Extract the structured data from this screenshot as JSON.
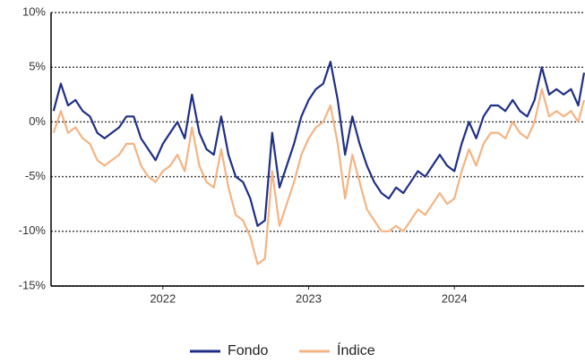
{
  "chart_data": {
    "type": "line",
    "x": [
      2021.25,
      2021.3,
      2021.35,
      2021.4,
      2021.45,
      2021.5,
      2021.55,
      2021.6,
      2021.65,
      2021.7,
      2021.75,
      2021.8,
      2021.85,
      2021.9,
      2021.95,
      2022.0,
      2022.05,
      2022.1,
      2022.15,
      2022.2,
      2022.25,
      2022.3,
      2022.35,
      2022.4,
      2022.45,
      2022.5,
      2022.55,
      2022.6,
      2022.65,
      2022.7,
      2022.75,
      2022.8,
      2022.85,
      2022.9,
      2022.95,
      2023.0,
      2023.05,
      2023.1,
      2023.15,
      2023.2,
      2023.25,
      2023.3,
      2023.35,
      2023.4,
      2023.45,
      2023.5,
      2023.55,
      2023.6,
      2023.65,
      2023.7,
      2023.75,
      2023.8,
      2023.85,
      2023.9,
      2023.95,
      2024.0,
      2024.05,
      2024.1,
      2024.15,
      2024.2,
      2024.25,
      2024.3,
      2024.35,
      2024.4,
      2024.45,
      2024.5,
      2024.55,
      2024.6,
      2024.65,
      2024.7,
      2024.75,
      2024.8,
      2024.85,
      2024.89
    ],
    "series": [
      {
        "name": "Fondo",
        "color": "#1f2f86",
        "values": [
          1,
          3.5,
          1.5,
          2,
          1,
          0.5,
          -1,
          -1.5,
          -1,
          -0.5,
          0.5,
          0.5,
          -1.5,
          -2.5,
          -3.5,
          -2,
          -1,
          0,
          -1.5,
          2.5,
          -1,
          -2.5,
          -3,
          0.5,
          -3,
          -5,
          -5.5,
          -7,
          -9.5,
          -9,
          -1,
          -6,
          -4,
          -2,
          0.5,
          2,
          3,
          3.5,
          5.5,
          2,
          -3,
          0.5,
          -2,
          -4,
          -5.5,
          -6.5,
          -7,
          -6,
          -6.5,
          -5.5,
          -4.5,
          -5,
          -4,
          -3,
          -4,
          -4.5,
          -2,
          0,
          -1.5,
          0.5,
          1.5,
          1.5,
          1,
          2,
          1,
          0.5,
          2,
          5,
          2.5,
          3,
          2.5,
          3,
          1.5,
          4.5
        ]
      },
      {
        "name": "Índice",
        "color": "#f4b483",
        "values": [
          -1,
          1,
          -1,
          -0.5,
          -1.5,
          -2,
          -3.5,
          -4,
          -3.5,
          -3,
          -2,
          -2,
          -4,
          -5,
          -5.5,
          -4.5,
          -4,
          -3,
          -4.5,
          -0.5,
          -4,
          -5.5,
          -6,
          -2.5,
          -6,
          -8.5,
          -9,
          -10.5,
          -13,
          -12.5,
          -4.5,
          -9.5,
          -7.5,
          -5.5,
          -3,
          -1.5,
          -0.5,
          0,
          1.5,
          -2,
          -7,
          -3,
          -5.5,
          -8,
          -9,
          -10,
          -10,
          -9.5,
          -10,
          -9,
          -8,
          -8.5,
          -7.5,
          -6.5,
          -7.5,
          -7,
          -4.5,
          -2.5,
          -4,
          -2,
          -1,
          -1,
          -1.5,
          0,
          -1,
          -1.5,
          0,
          3,
          0.5,
          1,
          0.5,
          1,
          0,
          2
        ]
      }
    ],
    "xlim": [
      2021.233,
      2024.89
    ],
    "xticks": [
      2022,
      2023,
      2024
    ],
    "ylim": [
      -15,
      10
    ],
    "yticks": [
      {
        "value": -15,
        "label": "-15%"
      },
      {
        "value": -10,
        "label": "-10%"
      },
      {
        "value": -5,
        "label": "-5%"
      },
      {
        "value": 0,
        "label": "0%"
      },
      {
        "value": 5,
        "label": "5%"
      },
      {
        "value": 10,
        "label": "10%"
      }
    ],
    "grid": true
  }
}
